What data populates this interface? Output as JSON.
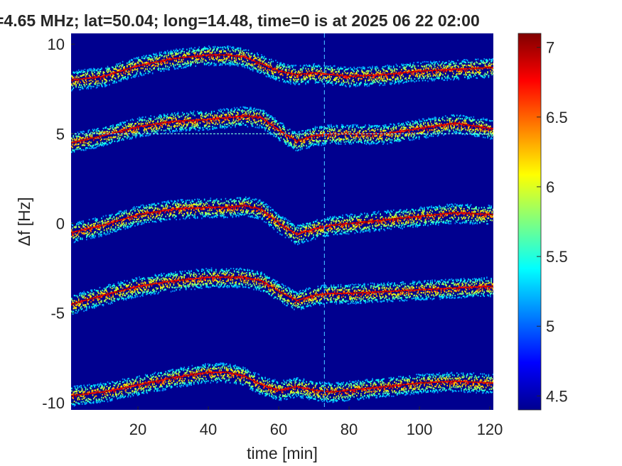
{
  "chart_data": {
    "type": "heatmap",
    "title": "=4.65 MHz;  lat=50.04; long=14.48, time=0 is at 2025 06 22 02:00",
    "xlabel": "time [min]",
    "ylabel": "Δf [Hz]",
    "xlim": [
      1,
      121
    ],
    "ylim": [
      -10.4,
      10.6
    ],
    "xticks": [
      20,
      40,
      60,
      80,
      100,
      120
    ],
    "xtick_labels": [
      "20",
      "40",
      "60",
      "80",
      "100",
      "120"
    ],
    "yticks": [
      -10,
      -5,
      0,
      5,
      10
    ],
    "ytick_labels": [
      "-10",
      "-5",
      "0",
      "5",
      "10"
    ],
    "colorbar": {
      "range": [
        4.4,
        7.1
      ],
      "ticks": [
        4.5,
        5,
        5.5,
        6,
        6.5,
        7
      ],
      "tick_labels": [
        "4.5",
        "5",
        "5.5",
        "6",
        "6.5",
        "7"
      ],
      "colormap": "jet"
    },
    "background_color": "#00008f",
    "series": [
      {
        "x": [
          1,
          10,
          20,
          30,
          40,
          45,
          50,
          55,
          60,
          65,
          70,
          75,
          80,
          90,
          100,
          110,
          120
        ],
        "y": [
          8.0,
          8.2,
          8.8,
          9.2,
          9.4,
          9.4,
          9.3,
          8.9,
          8.5,
          8.3,
          8.4,
          8.3,
          8.2,
          8.3,
          8.5,
          8.6,
          8.7
        ]
      },
      {
        "x": [
          1,
          10,
          20,
          30,
          40,
          45,
          50,
          55,
          60,
          65,
          70,
          75,
          80,
          90,
          100,
          110,
          120
        ],
        "y": [
          4.5,
          4.9,
          5.4,
          5.7,
          5.8,
          5.9,
          6.0,
          5.9,
          5.2,
          4.6,
          4.9,
          5.0,
          5.0,
          5.0,
          5.3,
          5.6,
          5.3
        ]
      },
      {
        "x": [
          1,
          10,
          20,
          30,
          40,
          45,
          50,
          55,
          60,
          65,
          70,
          75,
          80,
          90,
          100,
          110,
          120
        ],
        "y": [
          -0.5,
          -0.1,
          0.5,
          0.8,
          0.9,
          0.9,
          1.0,
          0.8,
          0.0,
          -0.6,
          -0.3,
          -0.1,
          0.0,
          0.2,
          0.4,
          0.6,
          0.5
        ]
      },
      {
        "x": [
          1,
          10,
          20,
          30,
          40,
          45,
          50,
          55,
          60,
          65,
          70,
          75,
          80,
          90,
          100,
          110,
          120
        ],
        "y": [
          -4.5,
          -4.0,
          -3.5,
          -3.2,
          -3.0,
          -3.0,
          -3.0,
          -3.2,
          -3.8,
          -4.3,
          -4.0,
          -3.9,
          -3.9,
          -3.8,
          -3.7,
          -3.6,
          -3.5
        ]
      },
      {
        "x": [
          1,
          10,
          20,
          30,
          40,
          45,
          50,
          55,
          60,
          65,
          70,
          75,
          80,
          90,
          100,
          110,
          120
        ],
        "y": [
          -9.6,
          -9.4,
          -9.0,
          -8.6,
          -8.3,
          -8.3,
          -8.5,
          -9.0,
          -9.3,
          -9.1,
          -9.3,
          -9.4,
          -9.3,
          -9.1,
          -8.9,
          -8.8,
          -8.9
        ]
      }
    ],
    "annotations": [
      {
        "type": "horizontal-line",
        "y": 5.0
      },
      {
        "type": "vertical-line",
        "x": 73
      }
    ]
  }
}
